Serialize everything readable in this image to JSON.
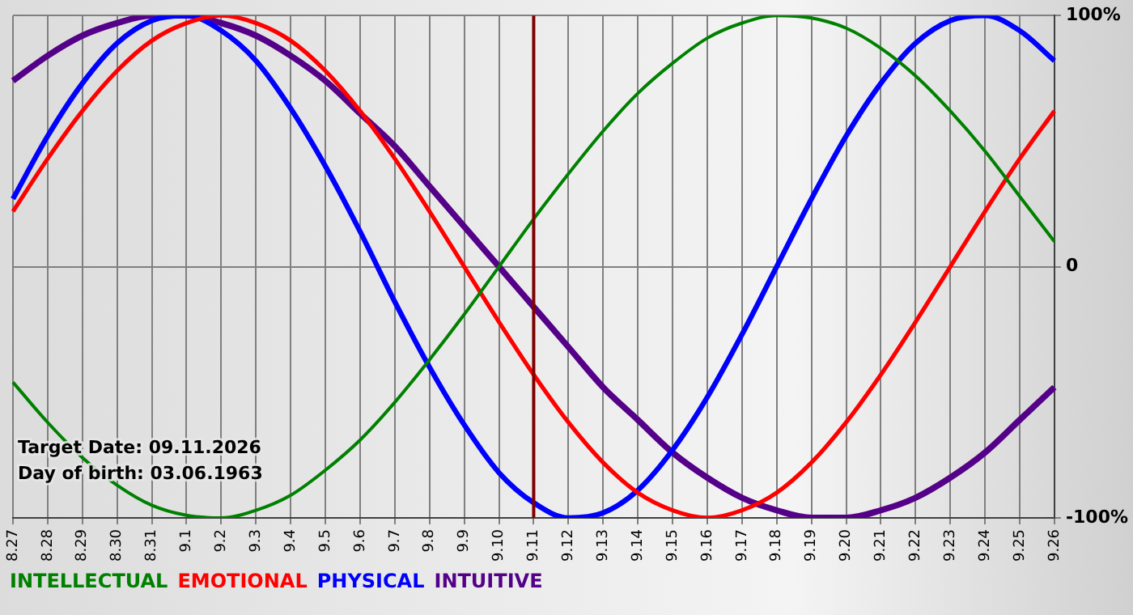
{
  "chart_data": {
    "type": "line",
    "categories": [
      "8.27",
      "8.28",
      "8.29",
      "8.30",
      "8.31",
      "9.1",
      "9.2",
      "9.3",
      "9.4",
      "9.5",
      "9.6",
      "9.7",
      "9.8",
      "9.9",
      "9.10",
      "9.11",
      "9.12",
      "9.13",
      "9.14",
      "9.15",
      "9.16",
      "9.17",
      "9.18",
      "9.19",
      "9.20",
      "9.21",
      "9.22",
      "9.23",
      "9.24",
      "9.25",
      "9.26"
    ],
    "series": [
      {
        "name": "INTELLECTUAL",
        "color": "#008000",
        "values": [
          -46,
          -62,
          -76,
          -87,
          -95,
          -99,
          -100,
          -97,
          -91,
          -81,
          -69,
          -54,
          -37,
          -19,
          0,
          19,
          37,
          54,
          69,
          81,
          91,
          97,
          100,
          99,
          95,
          87,
          76,
          62,
          46,
          28,
          10
        ]
      },
      {
        "name": "EMOTIONAL",
        "color": "#ff0000",
        "values": [
          22,
          43,
          62,
          78,
          90,
          97,
          100,
          97,
          90,
          78,
          62,
          43,
          22,
          0,
          -22,
          -43,
          -62,
          -78,
          -90,
          -97,
          -100,
          -97,
          -90,
          -78,
          -62,
          -43,
          -22,
          0,
          22,
          43,
          62
        ]
      },
      {
        "name": "PHYSICAL",
        "color": "#0000ff",
        "values": [
          27,
          52,
          73,
          89,
          98,
          100,
          94,
          82,
          63,
          40,
          14,
          -14,
          -40,
          -63,
          -82,
          -94,
          -100,
          -98,
          -89,
          -73,
          -52,
          -27,
          0,
          27,
          52,
          73,
          89,
          98,
          100,
          94,
          82
        ]
      },
      {
        "name": "INTUITIVE",
        "color": "#550088",
        "values": [
          74,
          84,
          92,
          97,
          100,
          100,
          97,
          92,
          84,
          74,
          61,
          48,
          32,
          16,
          0,
          -16,
          -32,
          -48,
          -61,
          -74,
          -84,
          -92,
          -97,
          -100,
          -100,
          -97,
          -92,
          -84,
          -74,
          -61,
          -48
        ]
      }
    ],
    "ylim": [
      -100,
      100
    ],
    "yticks": [
      {
        "value": -100,
        "label": "-100%"
      },
      0,
      {
        "value": 100,
        "label": "100%"
      }
    ],
    "ref_lines": [
      {
        "axis": "x",
        "value": "9.11",
        "color": "#800000"
      }
    ],
    "annotations": [
      "Target Date: 09.11.2026",
      "Day of birth: 03.06.1963"
    ],
    "grid": true,
    "legend": "bottom left",
    "marker": "none",
    "line_style": "solid"
  }
}
